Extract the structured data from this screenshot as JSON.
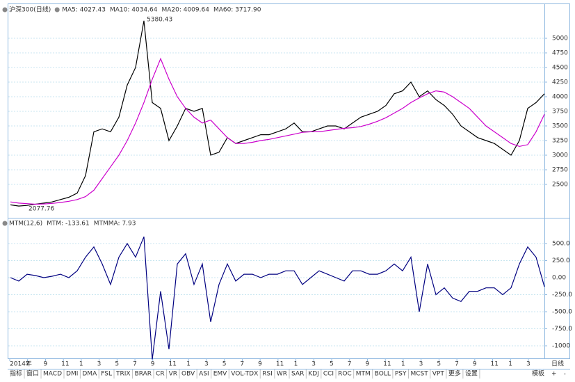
{
  "chart_data": [
    {
      "type": "line",
      "title": "沪深300(日线)",
      "indicators": [
        {
          "label": "MA5: 4027.43",
          "color": "#333333"
        },
        {
          "label": "MA10: 4034.64",
          "color": "#0000cc"
        },
        {
          "label": "MA20: 4009.64",
          "color": "#00aa00"
        },
        {
          "label": "MA60: 3717.90",
          "color": "#cc00cc"
        }
      ],
      "annotations": [
        "5380.43",
        "2077.76"
      ],
      "series": [
        {
          "name": "Close",
          "color": "#000000",
          "values": [
            2150,
            2130,
            2140,
            2160,
            2180,
            2200,
            2240,
            2280,
            2350,
            2650,
            3400,
            3450,
            3400,
            3650,
            4200,
            4500,
            5300,
            3900,
            3800,
            3250,
            3500,
            3800,
            3750,
            3800,
            3000,
            3050,
            3300,
            3200,
            3250,
            3300,
            3350,
            3350,
            3400,
            3450,
            3550,
            3400,
            3400,
            3450,
            3500,
            3500,
            3450,
            3550,
            3650,
            3700,
            3750,
            3850,
            4050,
            4100,
            4250,
            4000,
            4100,
            3950,
            3850,
            3700,
            3500,
            3400,
            3300,
            3250,
            3200,
            3100,
            3000,
            3250,
            3800,
            3900,
            4050
          ]
        },
        {
          "name": "MA60",
          "color": "#cc00cc",
          "values": [
            2200,
            2180,
            2170,
            2160,
            2165,
            2175,
            2190,
            2210,
            2240,
            2290,
            2400,
            2600,
            2800,
            3000,
            3250,
            3550,
            3900,
            4300,
            4650,
            4300,
            4000,
            3800,
            3650,
            3550,
            3600,
            3450,
            3300,
            3200,
            3200,
            3220,
            3250,
            3270,
            3300,
            3330,
            3360,
            3390,
            3400,
            3400,
            3420,
            3440,
            3460,
            3470,
            3490,
            3530,
            3580,
            3640,
            3720,
            3800,
            3900,
            3980,
            4050,
            4100,
            4080,
            4000,
            3900,
            3800,
            3650,
            3500,
            3400,
            3300,
            3200,
            3150,
            3180,
            3400,
            3700
          ]
        }
      ],
      "ylim": [
        1964,
        5536
      ],
      "yticks": [
        2500,
        2750,
        3000,
        3250,
        3500,
        3750,
        4000,
        4250,
        4500,
        4750,
        5000
      ],
      "grid": true
    },
    {
      "type": "line",
      "title": "MTM(12,6)",
      "indicators": [
        {
          "label": "MTM: -133.61",
          "color": "#000080"
        },
        {
          "label": "MTMMA: 7.93",
          "color": "#0000cc"
        }
      ],
      "series": [
        {
          "name": "MTM",
          "color": "#000080",
          "values": [
            0,
            -50,
            50,
            30,
            0,
            20,
            50,
            0,
            100,
            300,
            450,
            200,
            -100,
            300,
            500,
            300,
            600,
            -1200,
            -200,
            -1050,
            200,
            350,
            -100,
            200,
            -650,
            -100,
            200,
            -50,
            50,
            50,
            0,
            50,
            50,
            100,
            100,
            -100,
            0,
            100,
            50,
            0,
            -50,
            100,
            100,
            50,
            50,
            100,
            200,
            100,
            300,
            -500,
            200,
            -250,
            -150,
            -300,
            -350,
            -200,
            -200,
            -150,
            -150,
            -250,
            -150,
            200,
            450,
            300,
            -134
          ]
        }
      ],
      "ylim": [
        -1153,
        826
      ],
      "yticks": [
        {
          "value": 500,
          "label": "500.0"
        },
        {
          "value": 250,
          "label": "250.0"
        },
        {
          "value": 0,
          "label": "0.00"
        },
        {
          "value": -250,
          "label": "-250.0"
        },
        {
          "value": -500,
          "label": "-500.0"
        },
        {
          "value": -750,
          "label": "-750.0"
        },
        {
          "value": -1000,
          "label": "-1000"
        }
      ],
      "grid": true,
      "xtick_labels": [
        "2014年",
        "7",
        "9",
        "11",
        "1",
        "3",
        "5",
        "7",
        "9",
        "11",
        "1",
        "3",
        "5",
        "7",
        "9",
        "11",
        "1",
        "3",
        "5",
        "7",
        "9",
        "11",
        "1",
        "3",
        "5",
        "7",
        "9",
        "11",
        "1",
        "3"
      ],
      "period": "日线"
    }
  ],
  "toolbar": {
    "tabs": [
      "指标",
      "窗口",
      "MACD",
      "DMI",
      "DMA",
      "FSL",
      "TRIX",
      "BRAR",
      "CR",
      "VR",
      "OBV",
      "ASI",
      "EMV",
      "VOL-TDX",
      "RSI",
      "WR",
      "SAR",
      "KDJ",
      "CCI",
      "ROC",
      "MTM",
      "BOLL",
      "PSY",
      "MCST",
      "VPT",
      "更多",
      "设置"
    ],
    "active": "MTM",
    "right": [
      "模板",
      "+",
      "-"
    ]
  }
}
